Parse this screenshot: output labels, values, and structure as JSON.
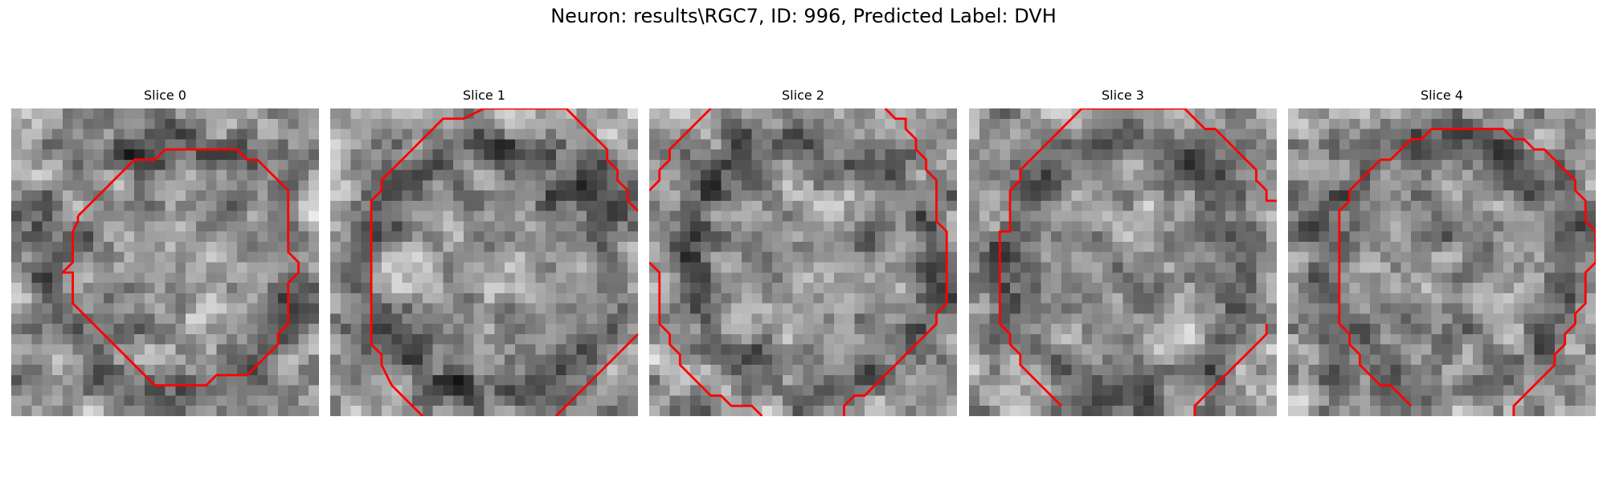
{
  "figure": {
    "title": "Neuron: results\\RGC7, ID: 996, Predicted Label: DVH"
  },
  "colors": {
    "contour": "#ff0000",
    "background": "#ffffff",
    "colormap": "grayscale"
  },
  "slices": [
    {
      "title": "Slice 0"
    },
    {
      "title": "Slice 1"
    },
    {
      "title": "Slice 2"
    },
    {
      "title": "Slice 3"
    },
    {
      "title": "Slice 4"
    }
  ]
}
